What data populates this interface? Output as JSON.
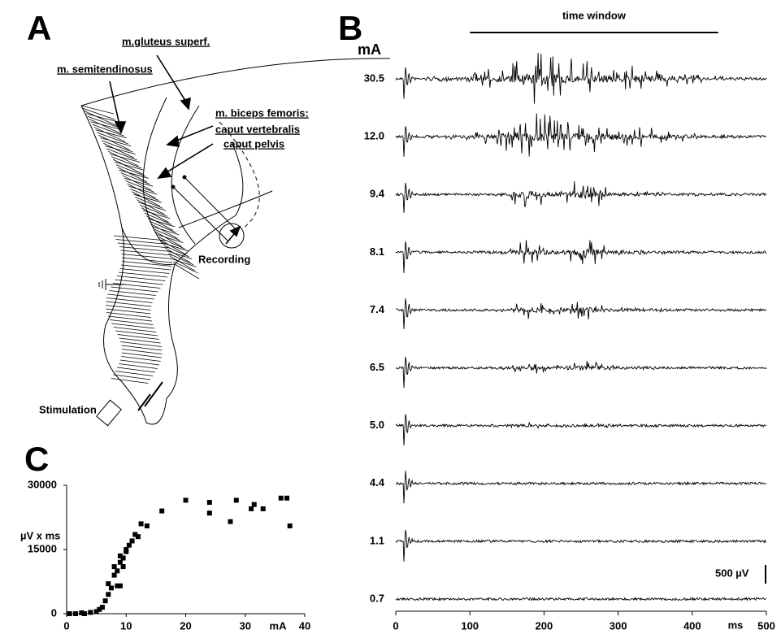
{
  "diagram": {
    "letter": "A",
    "labels": [
      "m.gluteus superf.",
      "m. semitendinosus",
      "m. biceps femoris:",
      "caput vertebralis",
      "caput pelvis",
      "Recording",
      "Stimulation"
    ]
  },
  "chart_data": [
    {
      "type": "traces",
      "letter": "B",
      "y_label": "mA",
      "x_label": "ms",
      "annotation": "time window",
      "time_window": [
        100,
        435
      ],
      "scale_label": "500 µV",
      "categories": [
        "30.5",
        "12.0",
        "9.4",
        "8.1",
        "7.4",
        "6.5",
        "5.0",
        "4.4",
        "1.1",
        "0.7"
      ],
      "xlim": [
        0,
        500
      ],
      "xticks": [
        0,
        100,
        200,
        300,
        400,
        500
      ]
    },
    {
      "type": "scatter",
      "letter": "C",
      "x_label": "mA",
      "y_label": "µV x ms",
      "color": "#000000",
      "x": [
        0.5,
        1.5,
        2.5,
        3,
        4,
        5,
        5.5,
        6,
        6.5,
        7,
        7,
        7.5,
        8,
        8,
        8.5,
        8.5,
        9,
        9,
        9,
        9.5,
        9.5,
        10,
        10,
        10.5,
        11,
        11.5,
        12,
        12.5,
        13.5,
        16,
        20,
        24,
        24,
        27.5,
        28.5,
        31,
        31.5,
        33,
        36,
        37,
        37.5
      ],
      "values": [
        0,
        0,
        200,
        0,
        300,
        500,
        1000,
        1500,
        3000,
        4500,
        7000,
        6000,
        9000,
        11000,
        6500,
        10000,
        6500,
        12000,
        13500,
        11000,
        13000,
        15000,
        14500,
        16000,
        17000,
        18500,
        18000,
        21000,
        20500,
        24000,
        26500,
        26000,
        23500,
        21500,
        26500,
        24500,
        25500,
        24500,
        27000,
        27000,
        20500
      ],
      "xlim": [
        0,
        40
      ],
      "xticks": [
        0,
        10,
        20,
        30,
        40
      ],
      "ylim": [
        0,
        30000
      ],
      "yticks": [
        0,
        15000,
        30000
      ]
    }
  ]
}
